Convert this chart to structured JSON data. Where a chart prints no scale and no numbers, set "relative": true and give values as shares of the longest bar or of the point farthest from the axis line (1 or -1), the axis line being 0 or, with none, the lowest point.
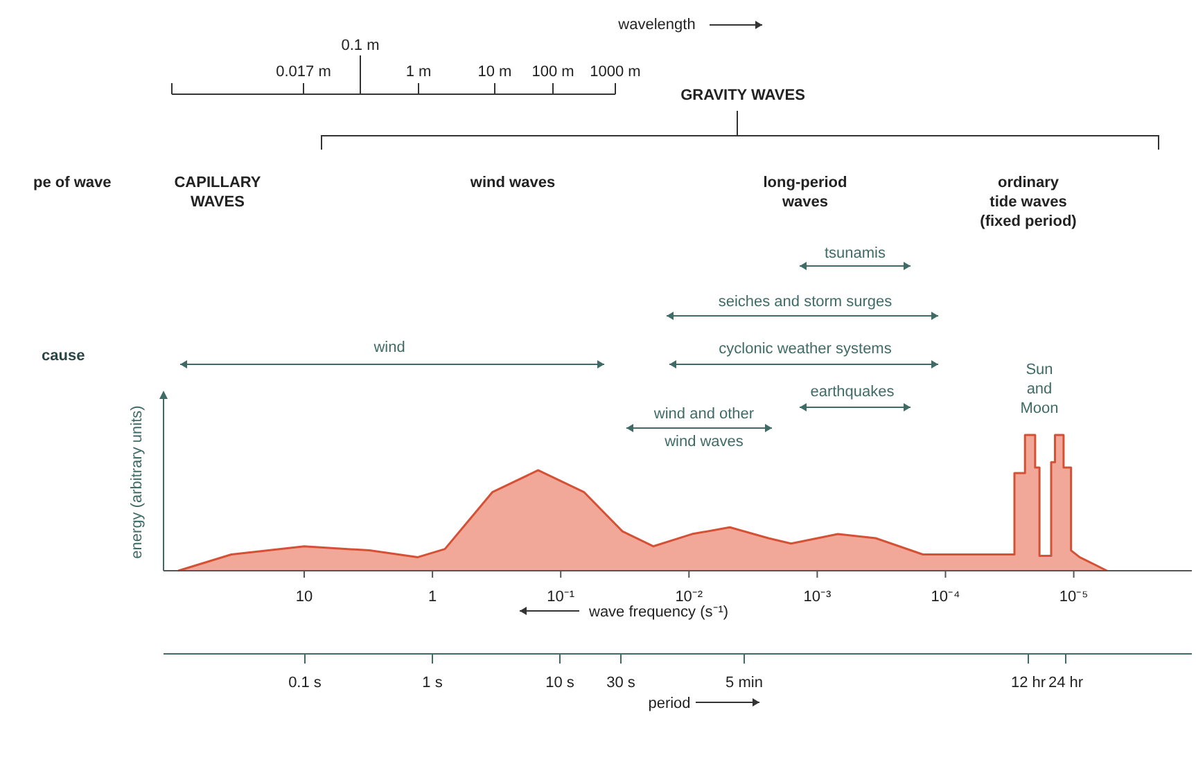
{
  "chart_data": {
    "type": "area",
    "relative": true,
    "color": "#f2a898",
    "log": "x",
    "grid": false,
    "x": [
      96,
      37,
      10,
      3.1,
      1.3,
      0.8,
      0.34,
      0.15,
      0.066,
      0.033,
      0.019,
      0.0095,
      0.0048,
      0.0024,
      0.0016,
      0.00069,
      0.00035,
      0.00015,
      3.3e-05,
      2.9e-05,
      2.9e-05,
      2.4e-05,
      2.4e-05,
      2e-05,
      2e-05,
      1.85e-05,
      1.85e-05,
      1.5e-05,
      1.5e-05,
      1.4e-05,
      1.4e-05,
      1.2e-05,
      1.2e-05,
      1.05e-05,
      1.05e-05,
      9e-06,
      5.5e-06
    ],
    "values": [
      0,
      0.12,
      0.18,
      0.15,
      0.1,
      0.16,
      0.58,
      0.74,
      0.58,
      0.29,
      0.18,
      0.27,
      0.32,
      0.24,
      0.2,
      0.27,
      0.24,
      0.12,
      0.12,
      0.12,
      0.72,
      0.72,
      1,
      1,
      0.76,
      0.76,
      0.11,
      0.11,
      0.8,
      0.8,
      1,
      1,
      0.76,
      0.76,
      0.15,
      0.1,
      0
    ],
    "xlim": [
      125,
      1.2e-06
    ],
    "xticks": [
      10,
      1,
      {
        "value": 0.1,
        "label": "10⁻¹"
      },
      {
        "value": 0.01,
        "label": "10⁻²"
      },
      {
        "value": 0.001,
        "label": "10⁻³"
      },
      {
        "value": 0.0001,
        "label": "10⁻⁴"
      },
      {
        "value": 1e-05,
        "label": "10⁻⁵"
      }
    ],
    "xlabel": "wave frequency (s⁻¹)",
    "ylabel": "energy (arbitrary units)",
    "annotations": [
      "pe of wave",
      "CAPILLARY\nWAVES",
      "wind waves",
      "long-period\nwaves",
      "ordinary\ntide waves\n(fixed period)",
      "GRAVITY WAVES",
      "cause",
      "wind",
      "tsunamis",
      "seiches and storm surges",
      "cyclonic weather systems",
      "earthquakes",
      "wind and other\nwind waves",
      "Sun\nand\nMoon",
      "period",
      "0.1 s",
      "1 s",
      "10 s",
      "30 s",
      "5 min",
      "12 hr",
      "24 hr",
      "wavelength",
      "0.017 m",
      "0.1 m",
      "1 m",
      "10 m",
      "100 m",
      "1000 m"
    ]
  }
}
